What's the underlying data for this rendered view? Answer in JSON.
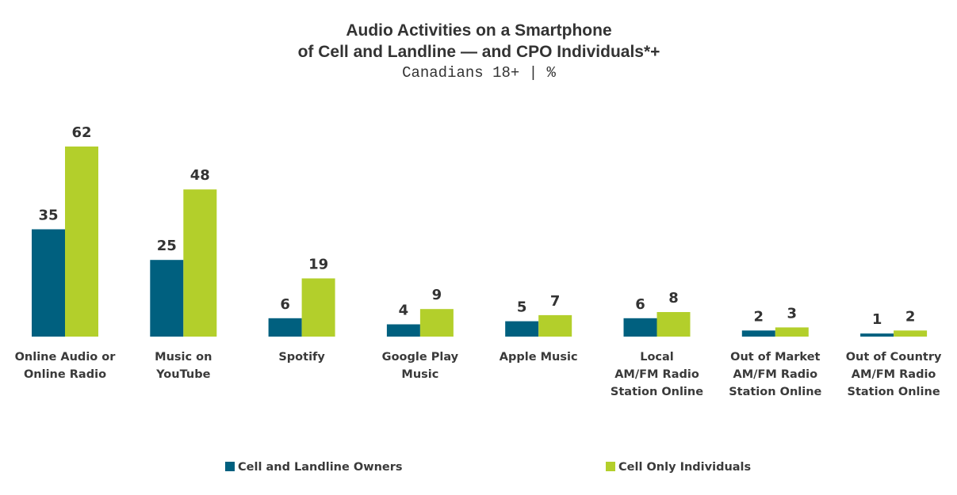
{
  "chart_data": {
    "type": "bar",
    "title_lines": [
      "Audio Activities on a Smartphone",
      "of Cell and Landline — and CPO Individuals*+"
    ],
    "subtitle": "Canadians 18+ | %",
    "categories": [
      [
        "Online Audio or",
        "Online Radio"
      ],
      [
        "Music on",
        "YouTube"
      ],
      [
        "Spotify"
      ],
      [
        "Google Play",
        "Music"
      ],
      [
        "Apple Music"
      ],
      [
        "Local",
        "AM/FM Radio",
        "Station Online"
      ],
      [
        "Out of Market",
        "AM/FM Radio",
        "Station Online"
      ],
      [
        "Out of Country",
        "AM/FM Radio",
        "Station Online"
      ]
    ],
    "series": [
      {
        "name": "Cell and Landline Owners",
        "color": "#00607f",
        "values": [
          35,
          25,
          6,
          4,
          5,
          6,
          2,
          1
        ]
      },
      {
        "name": "Cell Only Individuals",
        "color": "#b3cf2b",
        "values": [
          62,
          48,
          19,
          9,
          7,
          8,
          3,
          2
        ]
      }
    ],
    "ylim": [
      0,
      62
    ],
    "grid": false,
    "legend_position": "bottom"
  }
}
